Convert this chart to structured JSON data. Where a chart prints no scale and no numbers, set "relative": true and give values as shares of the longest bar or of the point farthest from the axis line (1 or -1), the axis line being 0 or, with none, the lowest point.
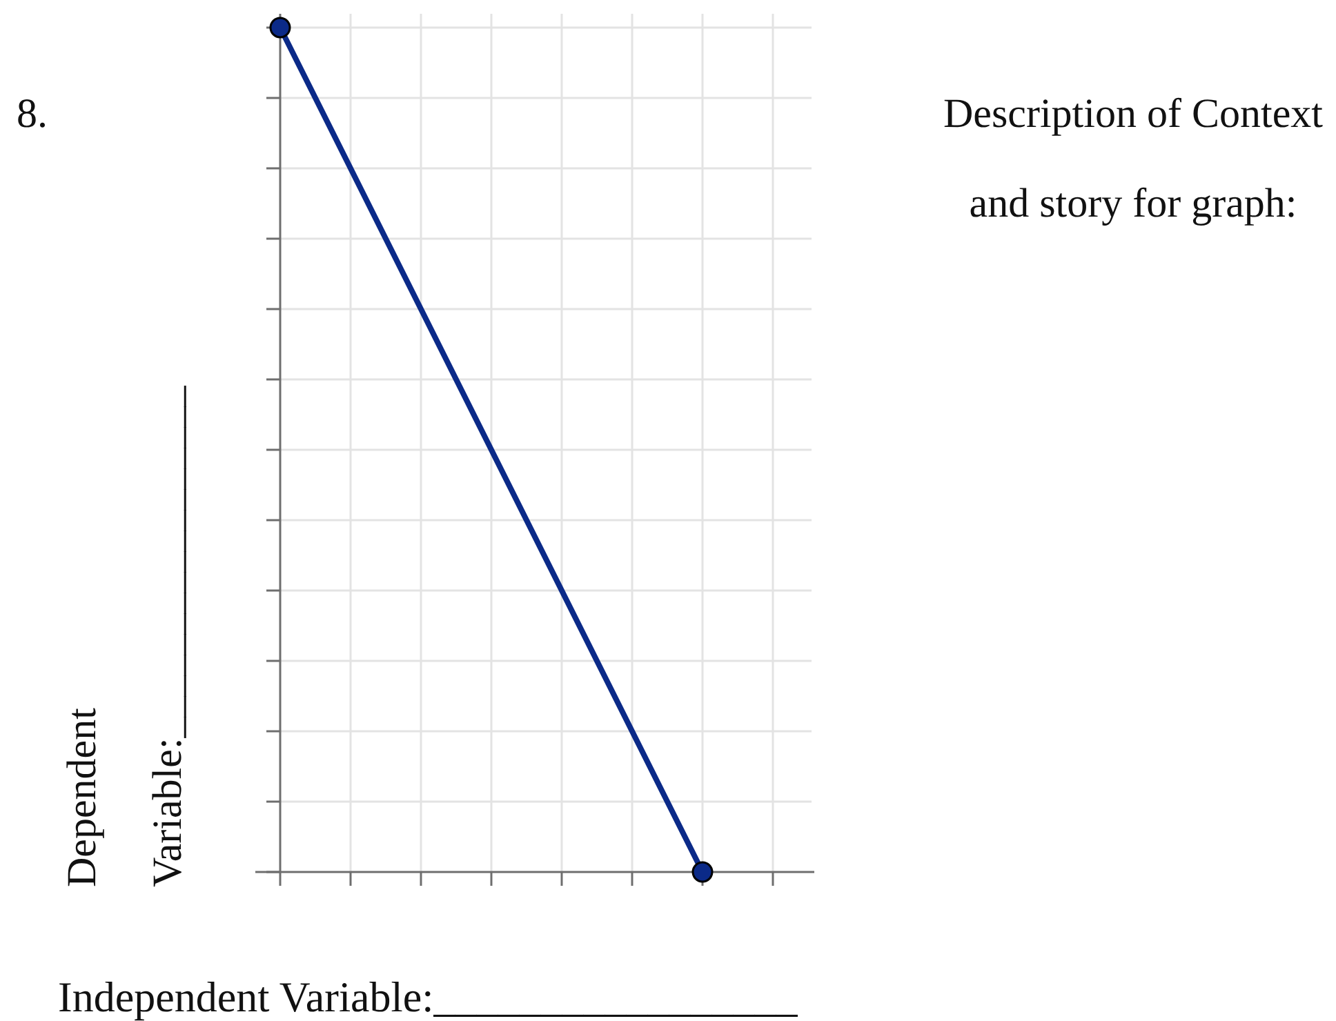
{
  "chart_data": {
    "type": "line",
    "xlabel": "Independent Variable:_________________",
    "ylabel": "Dependent Variable:_________________",
    "annotations": [
      "8.",
      "Description of Context and story for graph:"
    ],
    "categories": [
      null,
      null,
      null,
      null,
      null,
      null,
      null,
      null
    ],
    "series": [
      {
        "color": "#0b2a88",
        "values": [
          1,
          null,
          null,
          null,
          null,
          null,
          0,
          null
        ]
      }
    ],
    "relative": true,
    "grid": true,
    "marker": "circle"
  }
}
